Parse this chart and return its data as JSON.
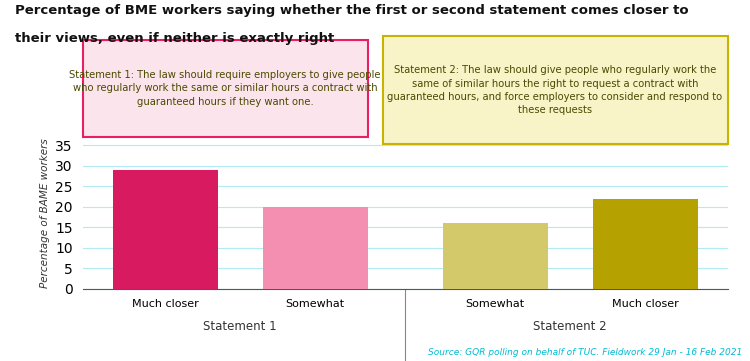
{
  "title_line1": "Percentage of BME workers saying whether the first or second statement comes closer to",
  "title_line2": "their views, even if neither is exactly right",
  "categories": [
    "Much closer",
    "Somewhat",
    "Somewhat",
    "Much closer"
  ],
  "values": [
    29,
    20,
    16,
    22
  ],
  "bar_colors": [
    "#d81b60",
    "#f48fb1",
    "#d4c96a",
    "#b5a100"
  ],
  "group_labels": [
    "Statement 1",
    "Statement 2"
  ],
  "ylabel": "Percentage of BAME workers",
  "ylim": [
    0,
    37
  ],
  "yticks": [
    0,
    5,
    10,
    15,
    20,
    25,
    30,
    35
  ],
  "source_text": "Source: GQR polling on behalf of TUC. Fieldwork 29 Jan - 16 Feb 2021",
  "source_color": "#00bcd4",
  "statement1_text": "Statement 1: The law should require employers to give people\nwho regularly work the same or similar hours a contract with\nguaranteed hours if they want one.",
  "statement2_text": "Statement 2: The law should give people who regularly work the\nsame of similar hours the right to request a contract with\nguaranteed hours, and force employers to consider and respond to\nthese requests",
  "stmt1_box_facecolor": "#fce4ec",
  "stmt1_border_color": "#e91e63",
  "stmt2_box_facecolor": "#f9f4c8",
  "stmt2_border_color": "#c8b400",
  "background_color": "#ffffff",
  "grid_color": "#b2ebf2",
  "divider_color": "#888888",
  "text_color_stmt": "#4a4a00"
}
